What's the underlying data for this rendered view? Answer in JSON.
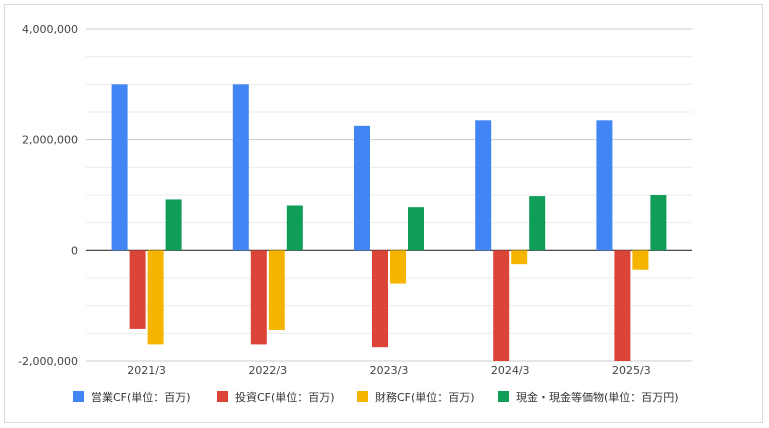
{
  "chart_data": {
    "type": "bar",
    "categories": [
      "2021/3",
      "2022/3",
      "2023/3",
      "2024/3",
      "2025/3"
    ],
    "series": [
      {
        "name": "営業CF(単位：百万)",
        "color": "#4285f4",
        "values": [
          3000000,
          3000000,
          2250000,
          2350000,
          2350000
        ]
      },
      {
        "name": "投資CF(単位：百万)",
        "color": "#db4437",
        "values": [
          -1420000,
          -1700000,
          -1750000,
          -2000000,
          -2000000
        ]
      },
      {
        "name": "財務CF(単位：百万)",
        "color": "#f4b400",
        "values": [
          -1700000,
          -1440000,
          -600000,
          -250000,
          -350000
        ]
      },
      {
        "name": "現金・現金等価物(単位：百万円)",
        "color": "#0f9d58",
        "values": [
          920000,
          810000,
          780000,
          980000,
          1000000
        ]
      }
    ],
    "ylim": [
      -2000000,
      4000000
    ],
    "yticks": [
      "4,000,000",
      "2,000,000",
      "0",
      "-2,000,000"
    ],
    "ytick_values": [
      4000000,
      2000000,
      0,
      -2000000
    ],
    "grid": true,
    "legend_position": "bottom"
  }
}
